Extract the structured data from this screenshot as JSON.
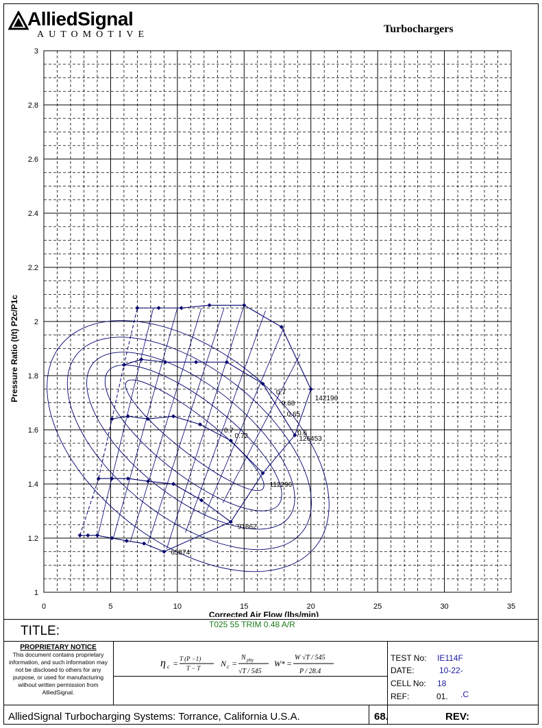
{
  "header": {
    "logo_text": "AlliedSignal",
    "logo_sub": "AUTOMOTIVE",
    "title": "Turbochargers",
    "colors": {
      "frame": "#000000"
    }
  },
  "chart_data": {
    "type": "line",
    "title": "",
    "xlabel": "Corrected Air Flow (lbs/min)",
    "ylabel": "Pressure Ratio (t/t) P2c/P1c",
    "xlim": [
      0,
      35
    ],
    "ylim": [
      1,
      3
    ],
    "x_ticks": [
      0,
      5,
      10,
      15,
      20,
      25,
      30,
      35
    ],
    "y_ticks": [
      "1",
      "1.2",
      "1.4",
      "1.6",
      "1.8",
      "2",
      "2.2",
      "2.4",
      "2.6",
      "2.8",
      "3"
    ],
    "grid": true,
    "colors": {
      "series": "#00006e",
      "contour": "#00006e",
      "grid": "#000000"
    },
    "speed_lines": [
      {
        "name": "65874",
        "points": [
          [
            2.7,
            1.21
          ],
          [
            3.3,
            1.21
          ],
          [
            4.0,
            1.21
          ],
          [
            5.1,
            1.2
          ],
          [
            6.2,
            1.19
          ],
          [
            7.5,
            1.18
          ],
          [
            9.0,
            1.15
          ]
        ]
      },
      {
        "name": "91862",
        "points": [
          [
            4.1,
            1.42
          ],
          [
            5.1,
            1.42
          ],
          [
            6.3,
            1.42
          ],
          [
            7.8,
            1.41
          ],
          [
            9.7,
            1.4
          ],
          [
            11.8,
            1.34
          ],
          [
            14.0,
            1.26
          ]
        ]
      },
      {
        "name": "112296",
        "points": [
          [
            5.1,
            1.64
          ],
          [
            6.3,
            1.65
          ],
          [
            7.8,
            1.64
          ],
          [
            9.7,
            1.65
          ],
          [
            11.7,
            1.62
          ],
          [
            14.0,
            1.56
          ],
          [
            16.4,
            1.44
          ]
        ]
      },
      {
        "name": "126453",
        "points": [
          [
            6.0,
            1.84
          ],
          [
            7.3,
            1.86
          ],
          [
            9.1,
            1.85
          ],
          [
            11.4,
            1.85
          ],
          [
            13.7,
            1.85
          ],
          [
            16.4,
            1.77
          ],
          [
            18.8,
            1.58
          ]
        ]
      },
      {
        "name": "142196",
        "points": [
          [
            7.0,
            2.05
          ],
          [
            8.6,
            2.05
          ],
          [
            10.3,
            2.05
          ],
          [
            12.4,
            2.06
          ],
          [
            15.0,
            2.06
          ],
          [
            17.8,
            1.98
          ],
          [
            20.0,
            1.75
          ]
        ]
      }
    ],
    "surge_line": [
      [
        2.7,
        1.21
      ],
      [
        4.1,
        1.42
      ],
      [
        5.1,
        1.64
      ],
      [
        6.0,
        1.84
      ],
      [
        7.0,
        2.05
      ]
    ],
    "efficiency_labels": [
      "0.7",
      "0.68",
      "0.65",
      "0.6",
      "0.72",
      "0.7"
    ]
  },
  "title_block": {
    "title_label": "TITLE:",
    "subtitle": "T025 55 TRIM  0.48 A/R",
    "notice_title": "PROPRIETARY NOTICE",
    "notice_body": "This document contains proprietary information, and such information may not be disclosed to others for any purpose, or used for manufacturing without written permission from AlliedSignal.",
    "test_label": "TEST No:",
    "test_value": "IE114F",
    "date_label": "DATE:",
    "date_value": "10-22-",
    "cell_label": "CELL No:",
    "cell_value": "18",
    "ref_label": "REF:",
    "ref_value": "01.",
    "ref_value2": ".C",
    "footer_text": "AlliedSignal Turbocharging Systems: Torrance, California U.S.A.",
    "footer_number": "68.",
    "footer_rev": "REV:"
  }
}
